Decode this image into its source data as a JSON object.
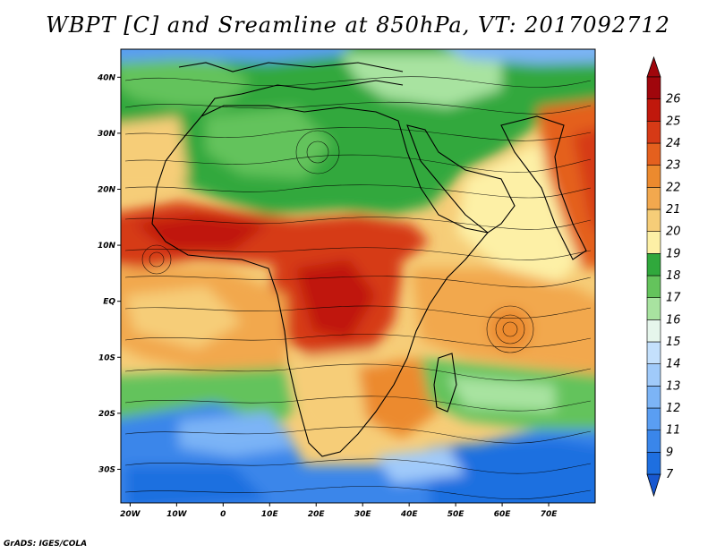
{
  "title": "WBPT [C] and Sreamline at 850hPa, VT: 2017092712",
  "footer": "GrADS: IGES/COLA",
  "map": {
    "lon_range": [
      -22,
      80
    ],
    "lat_range": [
      -36,
      45
    ],
    "lon_ticks": [
      {
        "value": -20,
        "label": "20W"
      },
      {
        "value": -10,
        "label": "10W"
      },
      {
        "value": 0,
        "label": "0"
      },
      {
        "value": 10,
        "label": "10E"
      },
      {
        "value": 20,
        "label": "20E"
      },
      {
        "value": 30,
        "label": "30E"
      },
      {
        "value": 40,
        "label": "40E"
      },
      {
        "value": 50,
        "label": "50E"
      },
      {
        "value": 60,
        "label": "60E"
      },
      {
        "value": 70,
        "label": "70E"
      }
    ],
    "lat_ticks": [
      {
        "value": 40,
        "label": "40N"
      },
      {
        "value": 30,
        "label": "30N"
      },
      {
        "value": 20,
        "label": "20N"
      },
      {
        "value": 10,
        "label": "10N"
      },
      {
        "value": 0,
        "label": "EQ"
      },
      {
        "value": -10,
        "label": "10S"
      },
      {
        "value": -20,
        "label": "20S"
      },
      {
        "value": -30,
        "label": "30S"
      }
    ]
  },
  "colorbar": {
    "levels": [
      {
        "label": "7",
        "color": "#1e6fe0"
      },
      {
        "label": "9",
        "color": "#3a86ea"
      },
      {
        "label": "11",
        "color": "#5a9ef2"
      },
      {
        "label": "12",
        "color": "#7cb4f6"
      },
      {
        "label": "13",
        "color": "#a0cafa"
      },
      {
        "label": "14",
        "color": "#c4e0fc"
      },
      {
        "label": "15",
        "color": "#e6f6ec"
      },
      {
        "label": "16",
        "color": "#a8e3a0"
      },
      {
        "label": "17",
        "color": "#64c35c"
      },
      {
        "label": "18",
        "color": "#30a83c"
      },
      {
        "label": "19",
        "color": "#fdf0a6"
      },
      {
        "label": "20",
        "color": "#f6cd78"
      },
      {
        "label": "21",
        "color": "#f2a84e"
      },
      {
        "label": "22",
        "color": "#ec8a2e"
      },
      {
        "label": "23",
        "color": "#e4601e"
      },
      {
        "label": "24",
        "color": "#d63a16"
      },
      {
        "label": "25",
        "color": "#c0180c"
      },
      {
        "label": "26",
        "color": "#a0060c"
      }
    ],
    "bottom_arrow_color": "#1858d0",
    "top_arrow_color": "#a0060c"
  }
}
